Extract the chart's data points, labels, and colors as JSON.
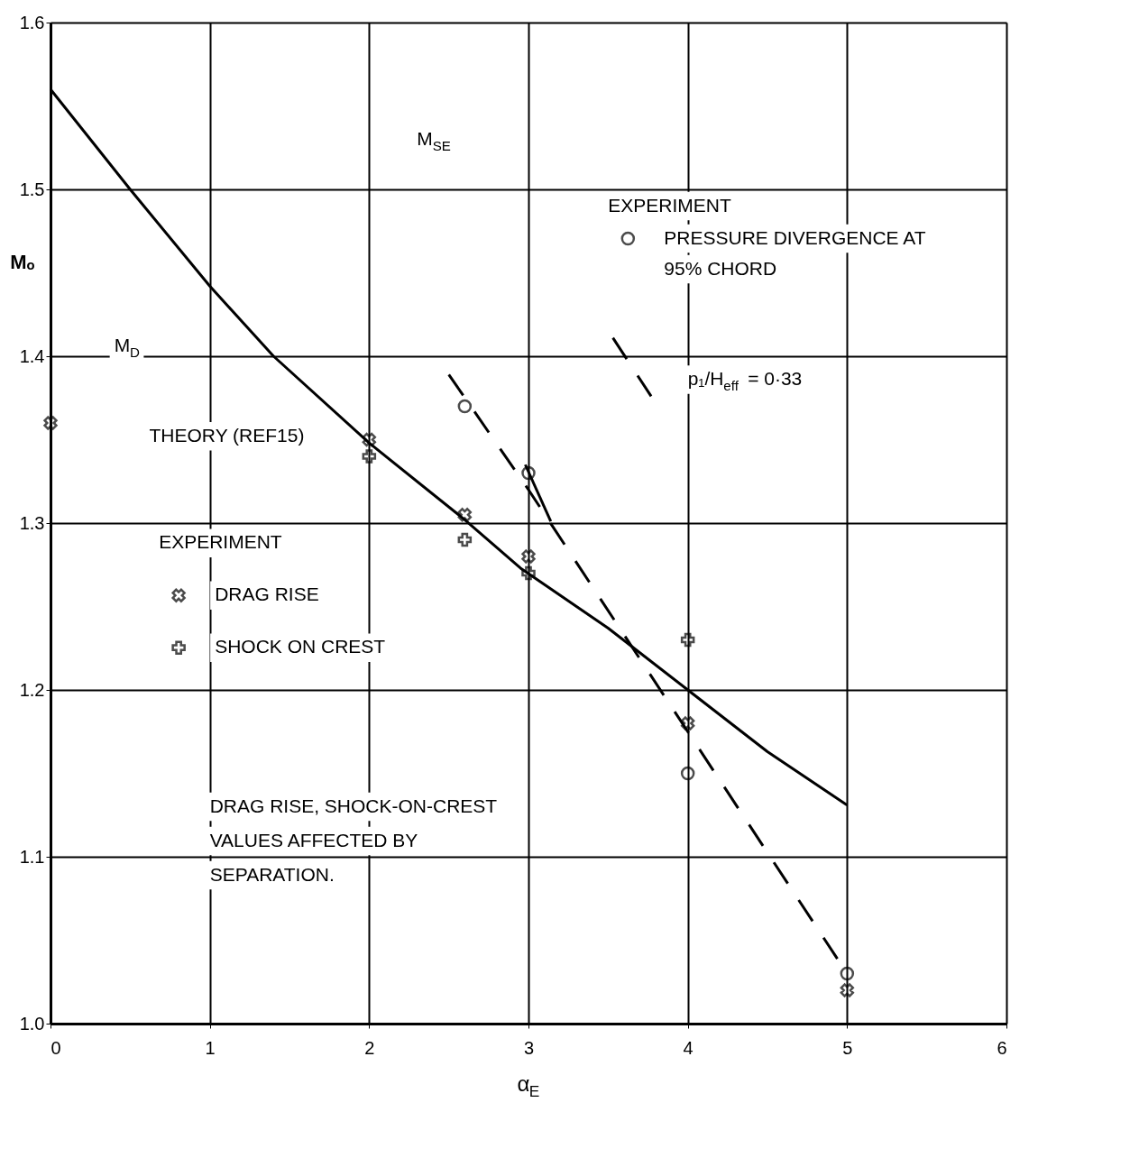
{
  "chart_data": {
    "type": "line",
    "xlabel": "α$_{E}$",
    "ylabel": "Mₒ",
    "legend_title": "EXPERIMENT",
    "xlim": [
      0,
      6
    ],
    "xticks": [
      0,
      1,
      2,
      3,
      4,
      5,
      6
    ],
    "ylim": [
      1.0,
      1.6
    ],
    "yticks": [
      {
        "value": 1.0,
        "label": "1.0"
      },
      {
        "value": 1.1,
        "label": "1.1"
      },
      {
        "value": 1.2,
        "label": "1.2"
      },
      {
        "value": 1.3,
        "label": "1.3"
      },
      {
        "value": 1.4,
        "label": "1.4"
      },
      {
        "value": 1.5,
        "label": "1.5"
      },
      {
        "value": 1.6,
        "label": "1.6"
      }
    ],
    "grid": true,
    "legend": "left",
    "series": [
      {
        "color": "#000000",
        "line_style": "solid",
        "x": [
          0,
          0.5,
          1.0,
          1.4,
          2.0,
          2.6,
          2.95,
          3.5,
          4.0,
          4.5,
          5.0
        ],
        "values": [
          1.56,
          1.5,
          1.442,
          1.4,
          1.348,
          1.302,
          1.273,
          1.237,
          1.2,
          1.163,
          1.131
        ]
      },
      {
        "color": "#000000",
        "line_style": "dashed",
        "x": [
          2.5,
          3.0,
          4.0,
          5.0
        ],
        "values": [
          1.389,
          1.32,
          1.175,
          1.03
        ]
      },
      {
        "color": "#000000",
        "line_style": "solid",
        "x": [
          2.98,
          3.14
        ],
        "values": [
          1.335,
          1.301
        ]
      },
      {
        "color": "#000000",
        "line_style": "dashed",
        "x": [
          3.53,
          3.77
        ],
        "values": [
          1.411,
          1.376
        ]
      },
      {
        "type": "scatter",
        "name": "DRAG RISE",
        "color": "#000000",
        "marker": "cross",
        "x": [
          0,
          2,
          2.6,
          3,
          4,
          5
        ],
        "values": [
          1.36,
          1.35,
          1.305,
          1.28,
          1.18,
          1.02
        ]
      },
      {
        "type": "scatter",
        "name": "SHOCK ON CREST",
        "color": "#000000",
        "marker": "plus",
        "x": [
          2,
          2.6,
          3,
          4
        ],
        "values": [
          1.34,
          1.29,
          1.27,
          1.23
        ]
      },
      {
        "type": "scatter",
        "name": "PRESSURE DIVERGENCE AT 95% CHORD",
        "color": "#000000",
        "marker": "circle",
        "x": [
          2.6,
          3,
          4,
          5
        ],
        "values": [
          1.37,
          1.33,
          1.15,
          1.03
        ]
      }
    ],
    "annotations": [
      "M$_{D}$",
      "THEORY (REF15)",
      "M$_{SE}$",
      "p₁/H$_{eff}$ = 0·33",
      "DRAG RISE, SHOCK-ON-CREST VALUES AFFECTED BY SEPARATION."
    ]
  }
}
